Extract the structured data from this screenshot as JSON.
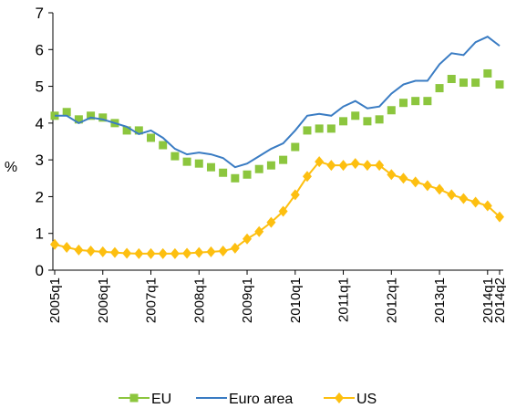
{
  "chart_data": {
    "type": "line",
    "categories": [
      "2005q1",
      null,
      null,
      null,
      "2006q1",
      null,
      null,
      null,
      "2007q1",
      null,
      null,
      null,
      "2008q1",
      null,
      null,
      null,
      "2009q1",
      null,
      null,
      null,
      "2010q1",
      null,
      null,
      null,
      "2011q1",
      null,
      null,
      null,
      "2012q1",
      null,
      null,
      null,
      "2013q1",
      null,
      null,
      null,
      "2014q1",
      "2014q2"
    ],
    "series": [
      {
        "name": "EU",
        "color": "#8cc63e",
        "marker": "square",
        "values": [
          4.2,
          4.3,
          4.1,
          4.2,
          4.15,
          4.0,
          3.8,
          3.8,
          3.6,
          3.4,
          3.1,
          2.95,
          2.9,
          2.8,
          2.65,
          2.5,
          2.6,
          2.75,
          2.85,
          3.0,
          3.35,
          3.8,
          3.85,
          3.85,
          4.05,
          4.2,
          4.05,
          4.1,
          4.35,
          4.55,
          4.6,
          4.6,
          4.95,
          5.2,
          5.1,
          5.1,
          5.35,
          5.05
        ]
      },
      {
        "name": "Euro area",
        "color": "#3a7cc3",
        "marker": "none",
        "values": [
          4.2,
          4.2,
          4.0,
          4.15,
          4.1,
          4.0,
          3.9,
          3.7,
          3.8,
          3.6,
          3.3,
          3.15,
          3.2,
          3.15,
          3.05,
          2.8,
          2.9,
          3.1,
          3.3,
          3.45,
          3.8,
          4.2,
          4.25,
          4.2,
          4.45,
          4.6,
          4.4,
          4.45,
          4.8,
          5.05,
          5.15,
          5.15,
          5.6,
          5.9,
          5.85,
          6.2,
          6.35,
          6.1
        ]
      },
      {
        "name": "US",
        "color": "#fdbf10",
        "marker": "diamond",
        "values": [
          0.7,
          0.62,
          0.55,
          0.52,
          0.5,
          0.48,
          0.46,
          0.45,
          0.45,
          0.45,
          0.45,
          0.46,
          0.48,
          0.5,
          0.52,
          0.6,
          0.85,
          1.05,
          1.3,
          1.6,
          2.05,
          2.55,
          2.95,
          2.85,
          2.85,
          2.9,
          2.85,
          2.85,
          2.6,
          2.5,
          2.4,
          2.3,
          2.2,
          2.05,
          1.95,
          1.85,
          1.75,
          1.45
        ]
      }
    ],
    "y_label": "%",
    "ylim": [
      0,
      7
    ],
    "yticks": [
      0,
      1,
      2,
      3,
      4,
      5,
      6,
      7
    ],
    "legend": "bottom"
  }
}
